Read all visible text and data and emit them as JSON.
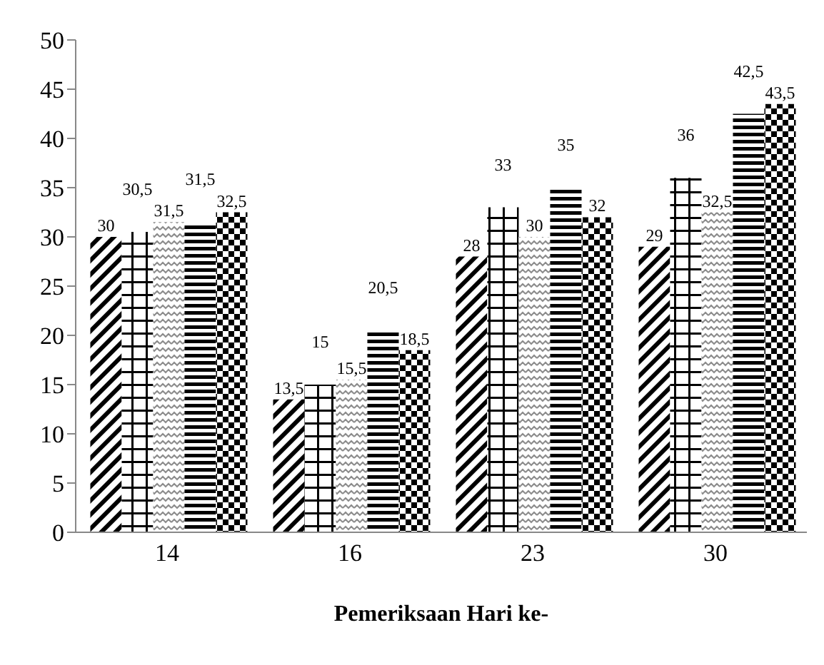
{
  "chart_data": {
    "type": "bar",
    "xlabel": "Pemeriksaan Hari ke-",
    "categories": [
      "14",
      "16",
      "23",
      "30"
    ],
    "series": [
      {
        "color": "#000000",
        "values": [
          30,
          13.5,
          28,
          29
        ],
        "value_labels": [
          "30",
          "13,5",
          "28",
          "29"
        ]
      },
      {
        "color": "#000000",
        "values": [
          30.5,
          15,
          33,
          36
        ],
        "value_labels": [
          "30,5",
          "15",
          "33",
          "36"
        ]
      },
      {
        "color": "#000000",
        "values": [
          31.5,
          15.5,
          30,
          32.5
        ],
        "value_labels": [
          "31,5",
          "15,5",
          "30",
          "32,5"
        ]
      },
      {
        "color": "#000000",
        "values": [
          31.5,
          20.5,
          35,
          42.5
        ],
        "value_labels": [
          "31,5",
          "20,5",
          "35",
          "42,5"
        ]
      },
      {
        "color": "#000000",
        "values": [
          32.5,
          18.5,
          32,
          43.5
        ],
        "value_labels": [
          "32,5",
          "18,5",
          "32",
          "43,5"
        ]
      }
    ],
    "ylim": [
      0,
      50
    ],
    "yticks": [
      0,
      5,
      10,
      15,
      20,
      25,
      30,
      35,
      40,
      45,
      50
    ],
    "grid": false,
    "legend": false
  }
}
